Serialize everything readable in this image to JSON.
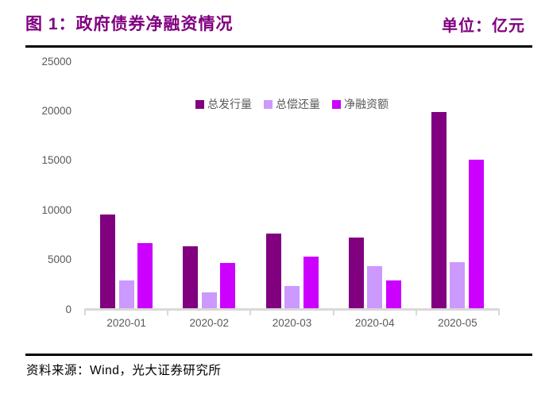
{
  "header": {
    "figure_label": "图 1：政府债券净融资情况",
    "unit_label": "单位：亿元"
  },
  "footer": {
    "source": "资料来源：Wind，光大证券研究所"
  },
  "colors": {
    "accent_purple": "#800080",
    "series_issuance": "#800080",
    "series_repayment": "#CC99FF",
    "series_net": "#CC00FF",
    "axis_text": "#595959",
    "axis_line": "#D9D9D9",
    "rule": "#000000"
  },
  "chart_data": {
    "type": "bar",
    "title": "政府债券净融资情况",
    "unit": "亿元",
    "categories": [
      "2020-01",
      "2020-02",
      "2020-03",
      "2020-04",
      "2020-05"
    ],
    "series": [
      {
        "name": "总发行量",
        "color": "#800080",
        "values": [
          9550,
          6350,
          7600,
          7250,
          19900
        ]
      },
      {
        "name": "总偿还量",
        "color": "#CC99FF",
        "values": [
          2850,
          1650,
          2300,
          4300,
          4750
        ]
      },
      {
        "name": "净融资额",
        "color": "#CC00FF",
        "values": [
          6650,
          4650,
          5250,
          2850,
          15050
        ]
      }
    ],
    "ylim": [
      0,
      25000
    ],
    "ytick_step": 5000,
    "grid": false,
    "legend_position": "top-center"
  }
}
